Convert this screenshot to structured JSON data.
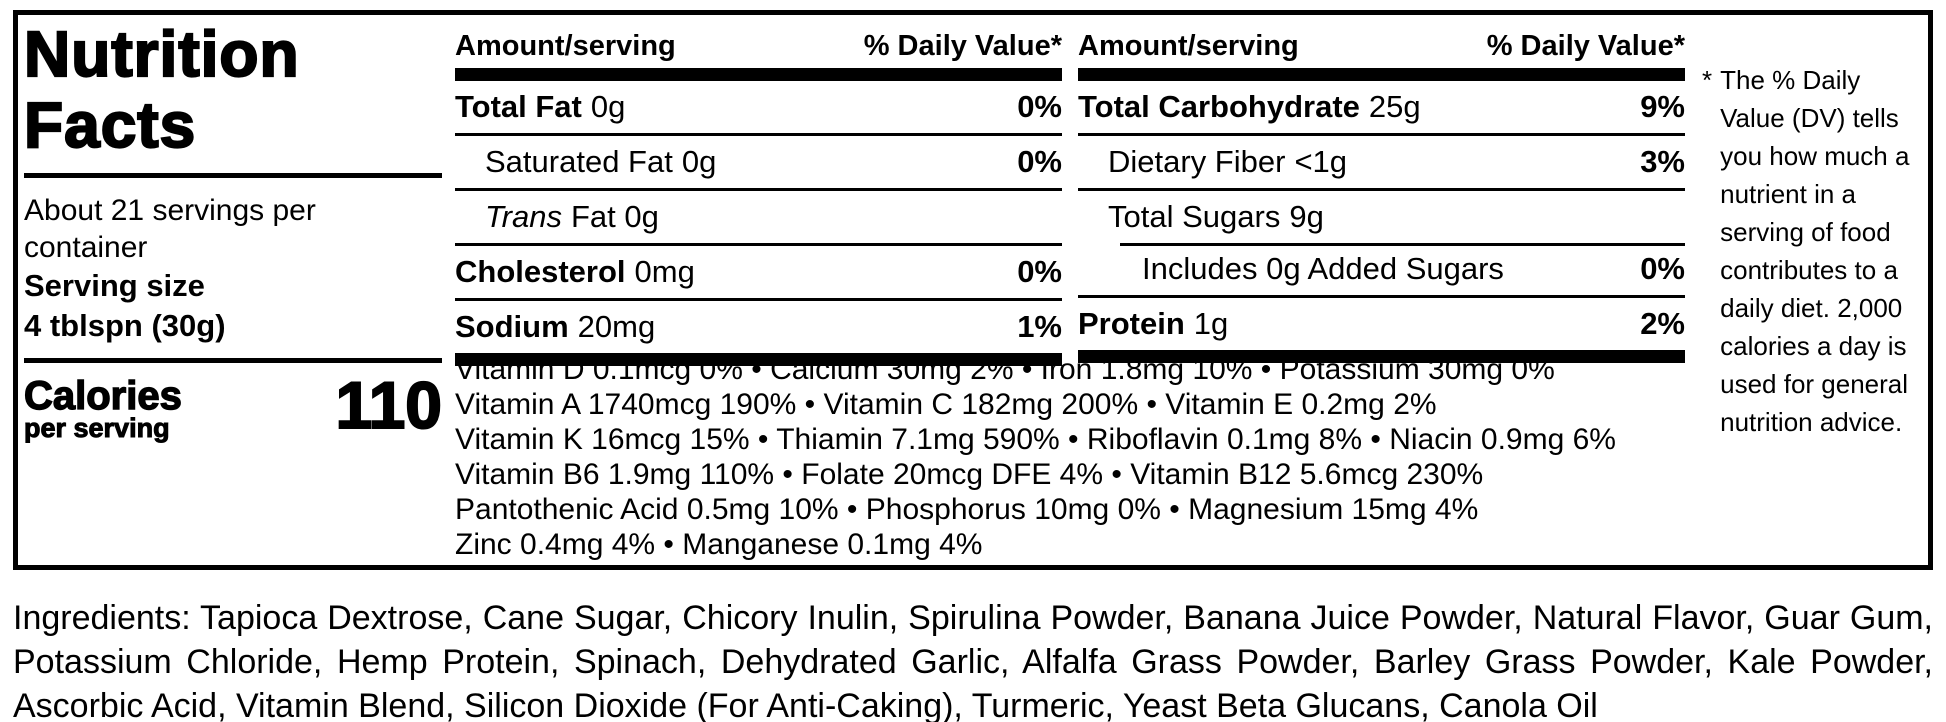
{
  "nutrition_label": {
    "title": {
      "line1": "Nutrition",
      "line2": "Facts"
    },
    "servings_per_container": "About 21 servings per container",
    "serving_size": {
      "label": "Serving size",
      "value": "4 tblspn (30g)"
    },
    "calories": {
      "label": "Calories",
      "sublabel": "per serving",
      "value": "110"
    },
    "column_headers": {
      "amount": "Amount/serving",
      "daily_value": "% Daily Value*"
    },
    "nutrient_columns": {
      "left": [
        {
          "name": "Total Fat",
          "amount": "0g",
          "dv": "0%"
        },
        {
          "name": "Saturated Fat",
          "amount": "0g",
          "dv": "0%"
        },
        {
          "name": "Trans",
          "amount": "Fat 0g",
          "dv": ""
        },
        {
          "name": "Cholesterol",
          "amount": "0mg",
          "dv": "0%"
        },
        {
          "name": "Sodium",
          "amount": "20mg",
          "dv": "1%"
        }
      ],
      "right": [
        {
          "name": "Total Carbohydrate",
          "amount": "25g",
          "dv": "9%"
        },
        {
          "name": "Dietary Fiber",
          "amount": "<1g",
          "dv": "3%"
        },
        {
          "name": "Total Sugars",
          "amount": "9g",
          "dv": ""
        },
        {
          "name": "Includes 0g Added Sugars",
          "amount": "",
          "dv": "0%"
        },
        {
          "name": "Protein",
          "amount": "1g",
          "dv": "2%"
        }
      ]
    },
    "micronutrients": {
      "lines": [
        "Vitamin D 0.1mcg 0% • Calcium 30mg 2% • Iron 1.8mg 10% • Potassium 30mg 0%",
        "Vitamin A 1740mcg 190% • Vitamin C 182mg 200% • Vitamin E 0.2mg 2%",
        "Vitamin K 16mcg 15% • Thiamin 7.1mg 590% • Riboflavin 0.1mg 8% • Niacin 0.9mg 6%",
        "Vitamin B6 1.9mg 110% • Folate 20mcg DFE 4% • Vitamin B12 5.6mcg 230%",
        "Pantothenic Acid 0.5mg 10% • Phosphorus 10mg 0% • Magnesium 15mg 4%",
        "Zinc 0.4mg 4% • Manganese 0.1mg 4%"
      ]
    },
    "footnote": {
      "marker": "*",
      "text": "The % Daily Value (DV) tells you how much a nutrient in a serving of food contributes to a daily diet. 2,000 calories a day is used for general nutrition advice."
    },
    "ingredients": "Ingredients: Tapioca Dextrose, Cane Sugar, Chicory Inulin, Spirulina Powder, Banana Juice Powder, Natural Flavor, Guar Gum, Potassium Chloride, Hemp Protein, Spinach, Dehydrated Garlic, Alfalfa Grass Powder, Barley Grass Powder, Kale Powder, Ascorbic Acid, Vitamin Blend, Silicon Dioxide (For Anti-Caking), Turmeric, Yeast Beta Glucans, Canola Oil"
  }
}
